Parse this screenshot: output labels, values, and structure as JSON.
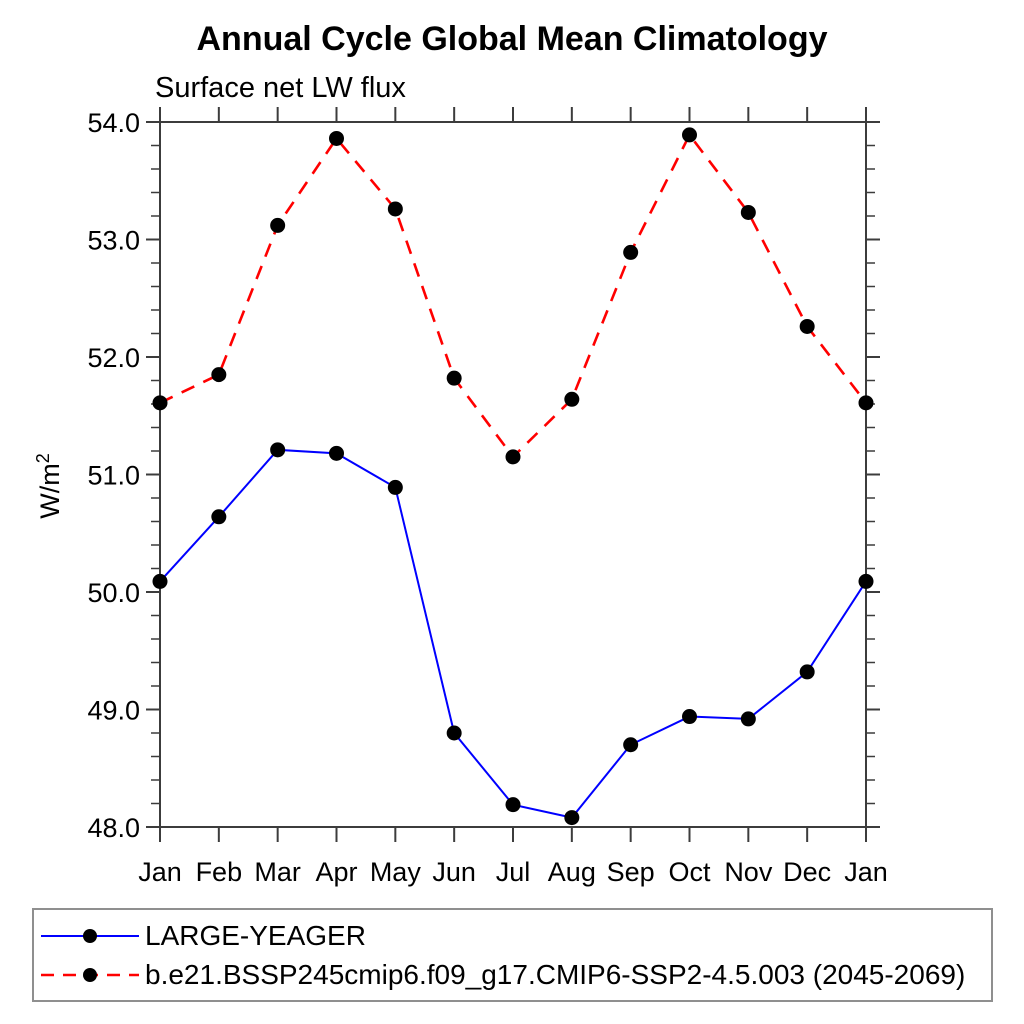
{
  "chart_data": {
    "type": "line",
    "title": "Annual Cycle Global Mean Climatology",
    "subtitle": "Surface net LW flux",
    "ylabel": "W/m2",
    "ylabel_base": "W/m",
    "ylabel_exp": "2",
    "x_categories": [
      "Jan",
      "Feb",
      "Mar",
      "Apr",
      "May",
      "Jun",
      "Jul",
      "Aug",
      "Sep",
      "Oct",
      "Nov",
      "Dec",
      "Jan"
    ],
    "ylim": [
      48.0,
      54.0
    ],
    "ytick_major_interval": 1.0,
    "ytick_minor_interval": 0.2,
    "ytick_labels": [
      "48.0",
      "49.0",
      "50.0",
      "51.0",
      "52.0",
      "53.0",
      "54.0"
    ],
    "grid": false,
    "legend_position": "bottom-box",
    "series": [
      {
        "name": "LARGE-YEAGER",
        "color": "#0000ff",
        "style": "solid",
        "marker": "black-dot",
        "values": [
          50.09,
          50.64,
          51.21,
          51.18,
          50.89,
          48.8,
          48.19,
          48.08,
          48.7,
          48.94,
          48.92,
          49.32,
          50.09
        ]
      },
      {
        "name": "b.e21.BSSP245cmip6.f09_g17.CMIP6-SSP2-4.5.003 (2045-2069)",
        "color": "#ff0000",
        "style": "dashed",
        "marker": "black-dot",
        "values": [
          51.61,
          51.85,
          53.12,
          53.86,
          53.26,
          51.82,
          51.15,
          51.64,
          52.89,
          53.89,
          53.23,
          52.26,
          51.61
        ]
      }
    ]
  },
  "colors": {
    "axis": "#3c3c3c",
    "marker": "#000000",
    "text": "#000000",
    "legend_border": "#8f8f8f"
  }
}
